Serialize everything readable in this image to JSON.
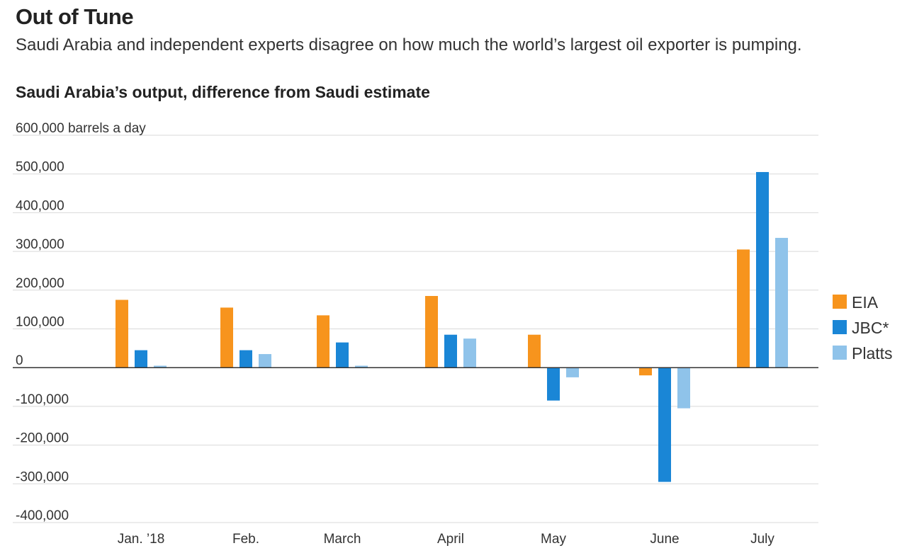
{
  "header": {
    "title": "Out of Tune",
    "subtitle": "Saudi Arabia and independent experts disagree on how much the world’s largest oil exporter is pumping."
  },
  "chart_data": {
    "type": "bar",
    "title": "Saudi Arabia’s output, difference from Saudi estimate",
    "ylabel": "",
    "xlabel": "",
    "y_unit_label": "600,000 barrels a day",
    "ylim": [
      -400000,
      600000
    ],
    "yticks": [
      600000,
      500000,
      400000,
      300000,
      200000,
      100000,
      0,
      -100000,
      -200000,
      -300000,
      -400000
    ],
    "ytick_labels": [
      "600,000 barrels a day",
      "500,000",
      "400,000",
      "300,000",
      "200,000",
      "100,000",
      "0",
      "-100,000",
      "-200,000",
      "-300,000",
      "-400,000"
    ],
    "grid": true,
    "legend_position": "right",
    "categories": [
      "Jan. ’18",
      "Feb.",
      "March",
      "April",
      "May",
      "June",
      "July"
    ],
    "series": [
      {
        "name": "EIA",
        "color": "#f7941d",
        "values": [
          175000,
          155000,
          135000,
          185000,
          85000,
          -20000,
          305000
        ]
      },
      {
        "name": "JBC*",
        "color": "#1a86d6",
        "values": [
          45000,
          45000,
          65000,
          85000,
          -85000,
          -295000,
          505000
        ]
      },
      {
        "name": "Platts",
        "color": "#8fc3ea",
        "values": [
          5000,
          35000,
          5000,
          75000,
          -25000,
          -105000,
          335000
        ]
      }
    ]
  }
}
